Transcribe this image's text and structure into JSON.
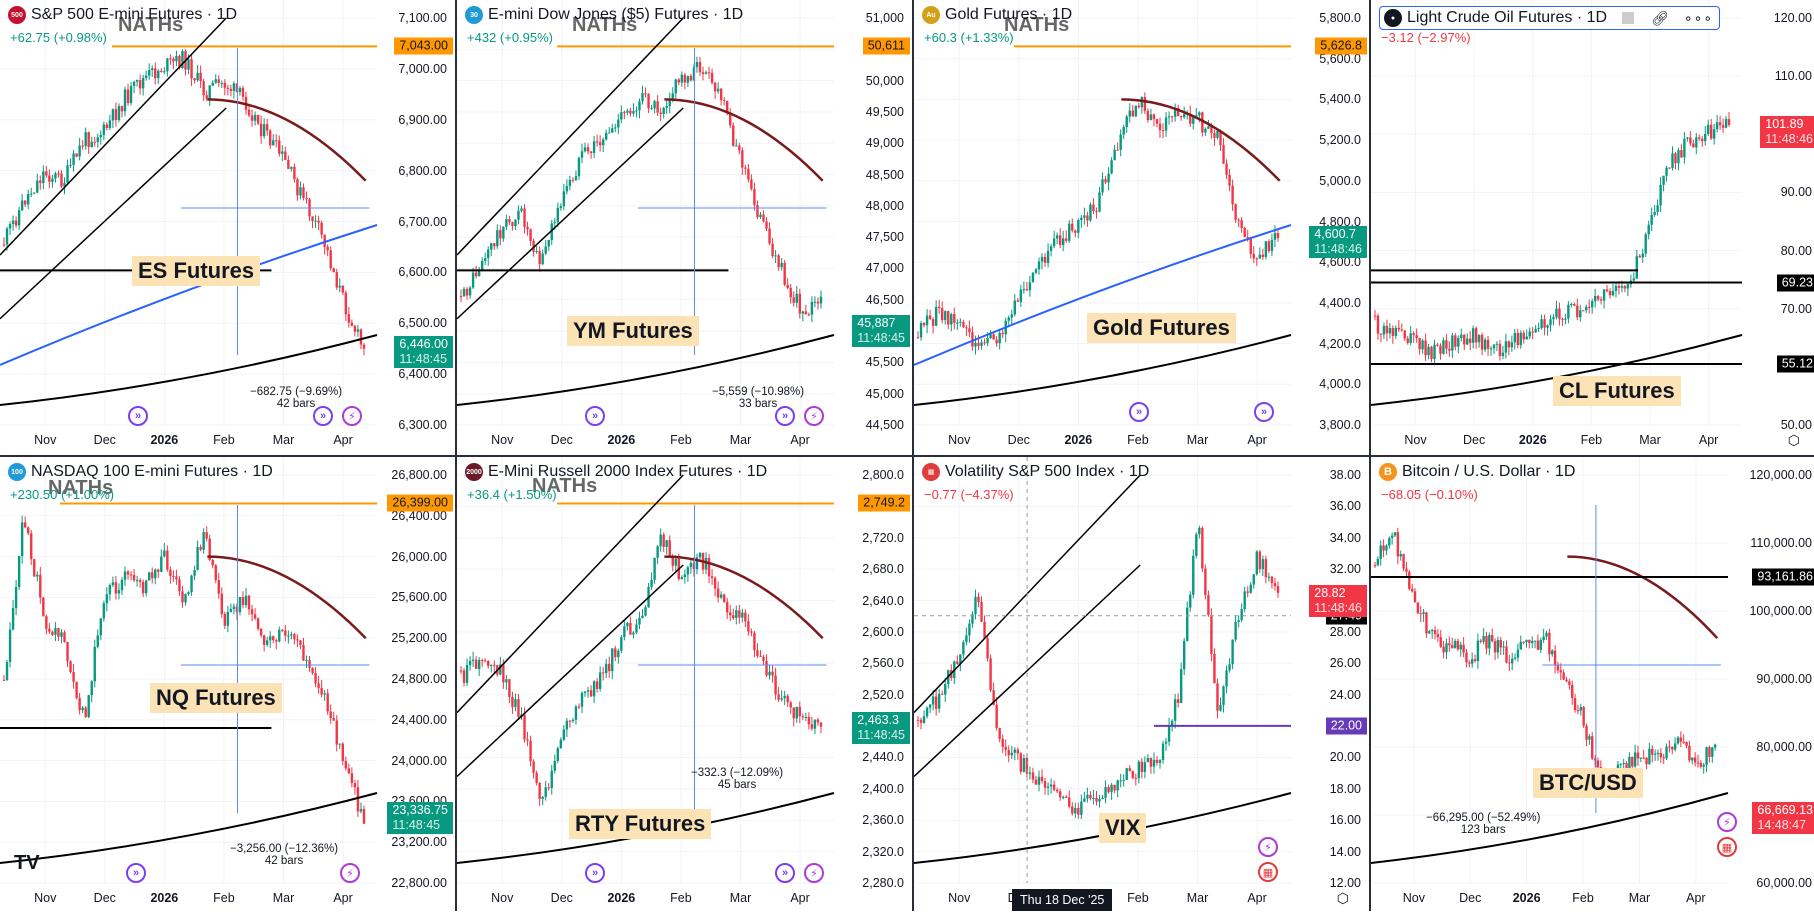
{
  "layout": {
    "columns": 4,
    "rows": 2
  },
  "colors": {
    "up": "#089981",
    "down": "#f23645",
    "ath_line": "#ff9800",
    "ma_dark": "#7b1a1a",
    "ma_blue": "#2962ff",
    "channel": "#000000",
    "measure": "#5b8def"
  },
  "panels": [
    {
      "id": "es",
      "title": "S&P 500 E-mini Futures · 1D",
      "symbol_badge": "500",
      "badge_color": "#c8102e",
      "change": "+62.75 (+0.98%)",
      "change_dir": "up",
      "ath_text": "NATHs",
      "label": "ES Futures",
      "y_ticks": [
        "7,100.00",
        "7,000.00",
        "6,900.00",
        "6,800.00",
        "6,700.00",
        "6,600.00",
        "6,500.00",
        "6,400.00",
        "6,300.00"
      ],
      "ath_tag": "7,043.00",
      "price_tag": "6,446.00",
      "price_time": "11:48:45",
      "price_dir": "up",
      "x_ticks": [
        "Nov",
        "Dec",
        "2026",
        "Feb",
        "Mar",
        "Apr"
      ],
      "measure": {
        "text": "−682.75 (−9.69%)",
        "bars": "42 bars"
      }
    },
    {
      "id": "ym",
      "title": "E-mini Dow Jones ($5) Futures · 1D",
      "symbol_badge": "30",
      "badge_color": "#1e9bd7",
      "change": "+432 (+0.95%)",
      "change_dir": "up",
      "ath_text": "NATHs",
      "label": "YM Futures",
      "y_ticks": [
        "51,000",
        "50,500",
        "50,000",
        "49,500",
        "49,000",
        "48,500",
        "48,000",
        "47,500",
        "47,000",
        "46,500",
        "46,000",
        "45,500",
        "45,000",
        "44,500"
      ],
      "ath_tag": "50,611",
      "price_tag": "45,887",
      "price_time": "11:48:45",
      "price_dir": "up",
      "x_ticks": [
        "Nov",
        "Dec",
        "2026",
        "Feb",
        "Mar",
        "Apr"
      ],
      "measure": {
        "text": "−5,559 (−10.98%)",
        "bars": "33 bars"
      }
    },
    {
      "id": "gc",
      "title": "Gold Futures · 1D",
      "symbol_badge": "Au",
      "badge_color": "#d4a017",
      "change": "+60.3 (+1.33%)",
      "change_dir": "up",
      "ath_text": "NATHs",
      "label": "Gold Futures",
      "y_ticks": [
        "5,800.0",
        "5,600.0",
        "5,400.0",
        "5,200.0",
        "5,000.0",
        "4,800.0",
        "4,600.0",
        "4,400.0",
        "4,200.0",
        "4,000.0",
        "3,800.0"
      ],
      "ath_tag": "5,626.8",
      "price_tag": "4,600.7",
      "price_time": "11:48:46",
      "price_dir": "up",
      "x_ticks": [
        "Nov",
        "Dec",
        "2026",
        "Feb",
        "Mar",
        "Apr"
      ]
    },
    {
      "id": "cl",
      "title": "Light Crude Oil Futures · 1D",
      "symbol_badge": "●",
      "badge_color": "#131722",
      "change": "−3.12 (−2.97%)",
      "change_dir": "down",
      "label": "CL Futures",
      "y_ticks": [
        "120.00",
        "110.00",
        "100.00",
        "90.00",
        "80.00",
        "70.00",
        "60.00",
        "50.00"
      ],
      "level_tags": [
        "69.23",
        "55.12"
      ],
      "price_tag": "101.89",
      "price_time": "11:48:46",
      "price_dir": "down",
      "x_ticks": [
        "Nov",
        "Dec",
        "2026",
        "Feb",
        "Mar",
        "Apr"
      ]
    },
    {
      "id": "nq",
      "title": "NASDAQ 100 E-mini Futures · 1D",
      "symbol_badge": "100",
      "badge_color": "#1e9bd7",
      "change": "+230.50 (+1.00%)",
      "change_dir": "up",
      "ath_text": "NATHs",
      "label": "NQ Futures",
      "y_ticks": [
        "26,800.00",
        "26,400.00",
        "26,000.00",
        "25,600.00",
        "25,200.00",
        "24,800.00",
        "24,400.00",
        "24,000.00",
        "23,600.00",
        "23,200.00",
        "22,800.00"
      ],
      "ath_tag": "26,399.00",
      "price_tag": "23,336.75",
      "price_time": "11:48:45",
      "price_dir": "up",
      "x_ticks": [
        "Nov",
        "Dec",
        "2026",
        "Feb",
        "Mar",
        "Apr"
      ],
      "measure": {
        "text": "−3,256.00 (−12.36%)",
        "bars": "42 bars"
      }
    },
    {
      "id": "rty",
      "title": "E-Mini Russell 2000 Index Futures · 1D",
      "symbol_badge": "2000",
      "badge_color": "#6b1a2a",
      "change": "+36.4 (+1.50%)",
      "change_dir": "up",
      "ath_text": "NATHs",
      "label": "RTY Futures",
      "y_ticks": [
        "2,800.0",
        "2,760.0",
        "2,720.0",
        "2,680.0",
        "2,640.0",
        "2,600.0",
        "2,560.0",
        "2,520.0",
        "2,480.0",
        "2,440.0",
        "2,400.0",
        "2,360.0",
        "2,320.0",
        "2,280.0"
      ],
      "ath_tag": "2,749.2",
      "price_tag": "2,463.3",
      "price_time": "11:48:45",
      "price_dir": "up",
      "x_ticks": [
        "Nov",
        "Dec",
        "2026",
        "Feb",
        "Mar",
        "Apr"
      ],
      "measure": {
        "text": "−332.3 (−12.09%)",
        "bars": "45 bars"
      }
    },
    {
      "id": "vix",
      "title": "Volatility S&P 500 Index · 1D",
      "symbol_badge": "US",
      "badge_color": "#e03c3c",
      "change": "−0.77 (−4.37%)",
      "change_dir": "down",
      "label": "VIX",
      "y_ticks": [
        "38.00",
        "36.00",
        "34.00",
        "32.00",
        "30.00",
        "28.00",
        "26.00",
        "24.00",
        "22.00",
        "20.00",
        "18.00",
        "16.00",
        "14.00",
        "12.00"
      ],
      "price_tag": "28.82",
      "price_time": "11:48:46",
      "price_dir": "down",
      "crosshair_tag": "27.49",
      "level_tag": "22.00",
      "x_ticks": [
        "Nov",
        "Dec",
        "2026",
        "Feb",
        "Mar",
        "Apr"
      ],
      "date_tooltip": "Thu 18 Dec '25"
    },
    {
      "id": "btc",
      "title": "Bitcoin / U.S. Dollar · 1D",
      "symbol_badge": "B",
      "badge_color": "#f7931a",
      "change": "−68.05 (−0.10%)",
      "change_dir": "down",
      "label": "BTC/USD",
      "y_ticks": [
        "120,000.00",
        "110,000.00",
        "100,000.00",
        "90,000.00",
        "80,000.00",
        "70,000.00",
        "60,000.00"
      ],
      "level_tag": "93,161.86",
      "price_tag": "66,669.13",
      "price_time": "14:48:47",
      "price_dir": "down",
      "x_ticks": [
        "Nov",
        "Dec",
        "2026",
        "Feb",
        "Mar",
        "Apr"
      ],
      "measure": {
        "text": "−66,295.00 (−52.49%)",
        "bars": "123 bars"
      }
    }
  ],
  "header_icons": {
    "flag": "flag-icon",
    "link": "link-icon",
    "more": "more-icon"
  },
  "brand_logo": "TV"
}
